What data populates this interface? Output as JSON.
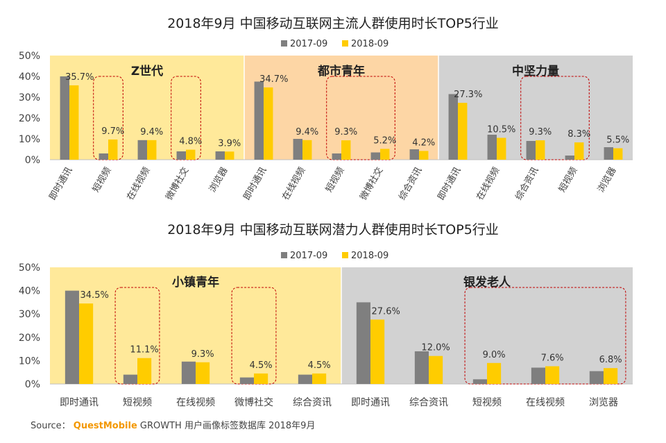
{
  "colors": {
    "series_2017": "#7f7f7f",
    "series_2018": "#ffcc00",
    "group_bg": [
      "#ffe99a",
      "#fdd6a5",
      "#d2d2d2",
      "#ffe99a",
      "#d2d2d2"
    ],
    "highlight_border": "#c00000",
    "axis_text": "#404040"
  },
  "chart_data": [
    {
      "type": "bar",
      "title": "2018年9月 中国移动互联网主流人群使用时长TOP5行业",
      "legend": [
        "2017-09",
        "2018-09"
      ],
      "legend_placement": "top",
      "ylim": [
        0,
        50
      ],
      "yticks": [
        "0%",
        "10%",
        "20%",
        "30%",
        "40%",
        "50%"
      ],
      "groups": [
        {
          "name": "Z世代",
          "categories": [
            "即时通讯",
            "短视频",
            "在线视频",
            "微博社交",
            "浏览器"
          ],
          "series": [
            {
              "name": "2017-09",
              "values": [
                40.0,
                3.0,
                9.4,
                4.0,
                4.0
              ]
            },
            {
              "name": "2018-09",
              "values": [
                35.7,
                9.7,
                9.4,
                4.8,
                3.9
              ]
            }
          ],
          "labels": [
            "35.7%",
            "9.7%",
            "9.4%",
            "4.8%",
            "3.9%"
          ],
          "highlighted": [
            1,
            3
          ]
        },
        {
          "name": "都市青年",
          "categories": [
            "即时通讯",
            "在线视频",
            "短视频",
            "微博社交",
            "综合资讯"
          ],
          "series": [
            {
              "name": "2017-09",
              "values": [
                37.5,
                10.0,
                3.0,
                3.5,
                5.0
              ]
            },
            {
              "name": "2018-09",
              "values": [
                34.7,
                9.4,
                9.3,
                5.2,
                4.2
              ]
            }
          ],
          "labels": [
            "34.7%",
            "9.4%",
            "9.3%",
            "5.2%",
            "4.2%"
          ],
          "highlighted": [
            2,
            3
          ]
        },
        {
          "name": "中坚力量",
          "categories": [
            "即时通讯",
            "在线视频",
            "综合资讯",
            "短视频",
            "浏览器"
          ],
          "series": [
            {
              "name": "2017-09",
              "values": [
                31.5,
                12.0,
                9.0,
                2.0,
                6.0
              ]
            },
            {
              "name": "2018-09",
              "values": [
                27.3,
                10.5,
                9.3,
                8.3,
                5.5
              ]
            }
          ],
          "labels": [
            "27.3%",
            "10.5%",
            "9.3%",
            "8.3%",
            "5.5%"
          ],
          "highlighted": [
            2,
            3
          ]
        }
      ]
    },
    {
      "type": "bar",
      "title": "2018年9月 中国移动互联网潜力人群使用时长TOP5行业",
      "legend": [
        "2017-09",
        "2018-09"
      ],
      "legend_placement": "top",
      "ylim": [
        0,
        50
      ],
      "yticks": [
        "0%",
        "10%",
        "20%",
        "30%",
        "40%",
        "50%"
      ],
      "groups": [
        {
          "name": "小镇青年",
          "categories": [
            "即时通讯",
            "短视频",
            "在线视频",
            "微博社交",
            "综合资讯"
          ],
          "series": [
            {
              "name": "2017-09",
              "values": [
                40.0,
                4.0,
                9.6,
                2.8,
                4.0
              ]
            },
            {
              "name": "2018-09",
              "values": [
                34.5,
                11.1,
                9.3,
                4.5,
                4.5
              ]
            }
          ],
          "labels": [
            "34.5%",
            "11.1%",
            "9.3%",
            "4.5%",
            "4.5%"
          ],
          "highlighted": [
            1,
            3
          ]
        },
        {
          "name": "银发老人",
          "categories": [
            "即时通讯",
            "综合资讯",
            "短视频",
            "在线视频",
            "浏览器"
          ],
          "series": [
            {
              "name": "2017-09",
              "values": [
                35.0,
                14.0,
                2.0,
                7.0,
                5.5
              ]
            },
            {
              "name": "2018-09",
              "values": [
                27.6,
                12.0,
                9.0,
                7.6,
                6.8
              ]
            }
          ],
          "labels": [
            "27.6%",
            "12.0%",
            "9.0%",
            "7.6%",
            "6.8%"
          ],
          "highlighted": [
            2,
            3,
            4
          ]
        }
      ]
    }
  ],
  "source": {
    "prefix": "Source：",
    "brand": "QuestMobile",
    "suffix": "GROWTH 用户画像标签数据库 2018年9月"
  }
}
